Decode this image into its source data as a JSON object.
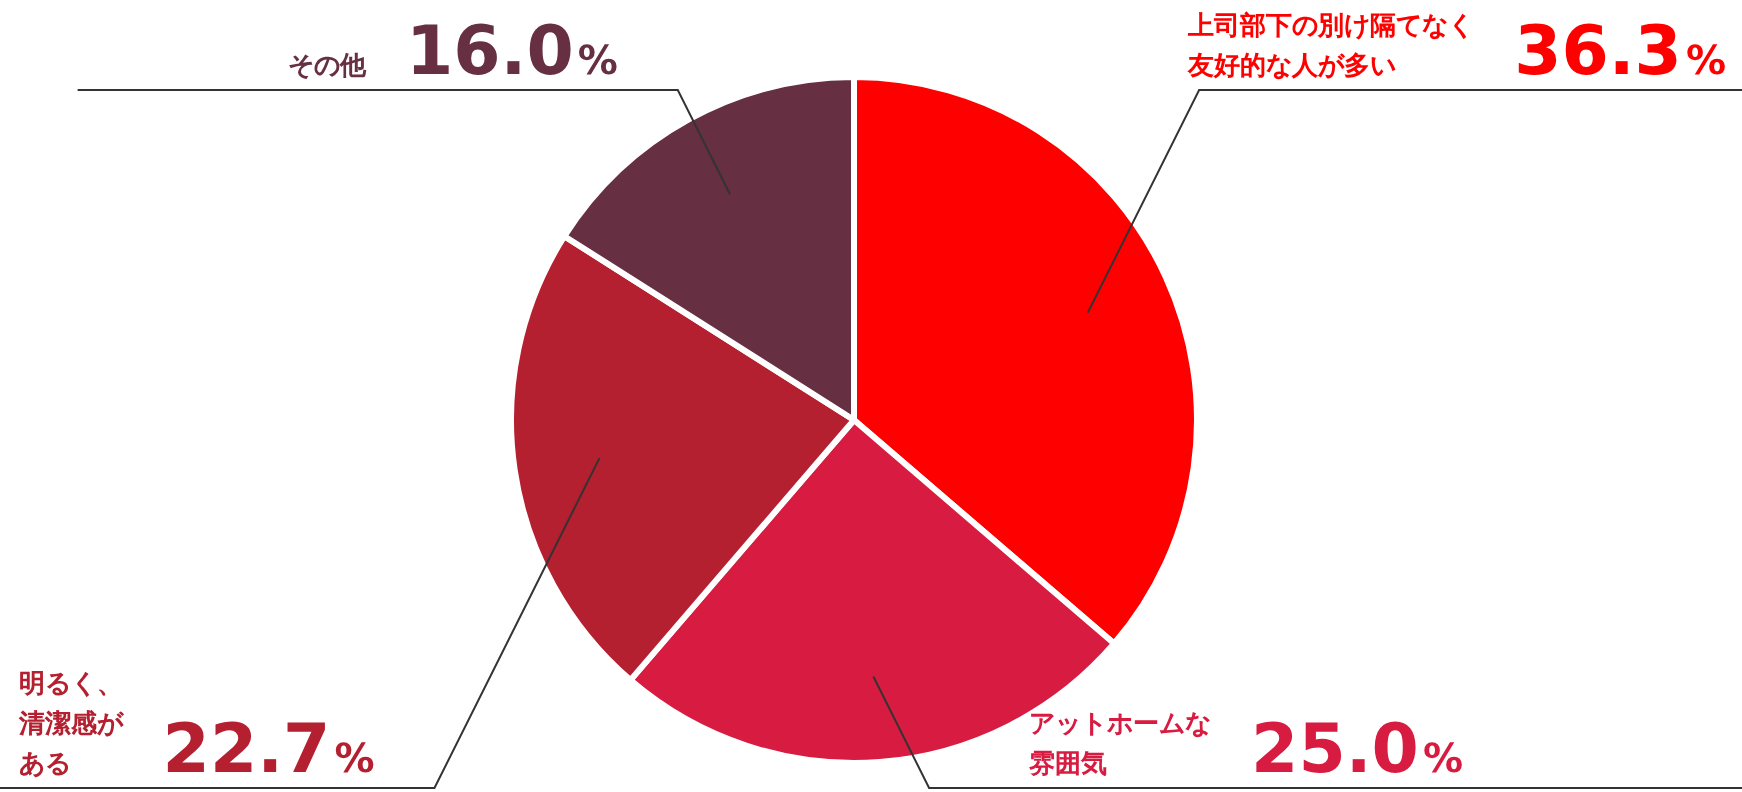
{
  "chart_data": {
    "type": "pie",
    "categories": [
      "上司部下の別け隔てなく友好的な人が多い",
      "アットホームな雰囲気",
      "明るく、清潔感がある",
      "その他"
    ],
    "values": [
      36.3,
      25.0,
      22.7,
      16.0
    ],
    "colors": [
      "#ff0000",
      "#d81b40",
      "#b52030",
      "#662f42"
    ],
    "value_labels": [
      "36.3%",
      "25.0%",
      "22.7%",
      "16.0%"
    ],
    "legend": false
  }
}
